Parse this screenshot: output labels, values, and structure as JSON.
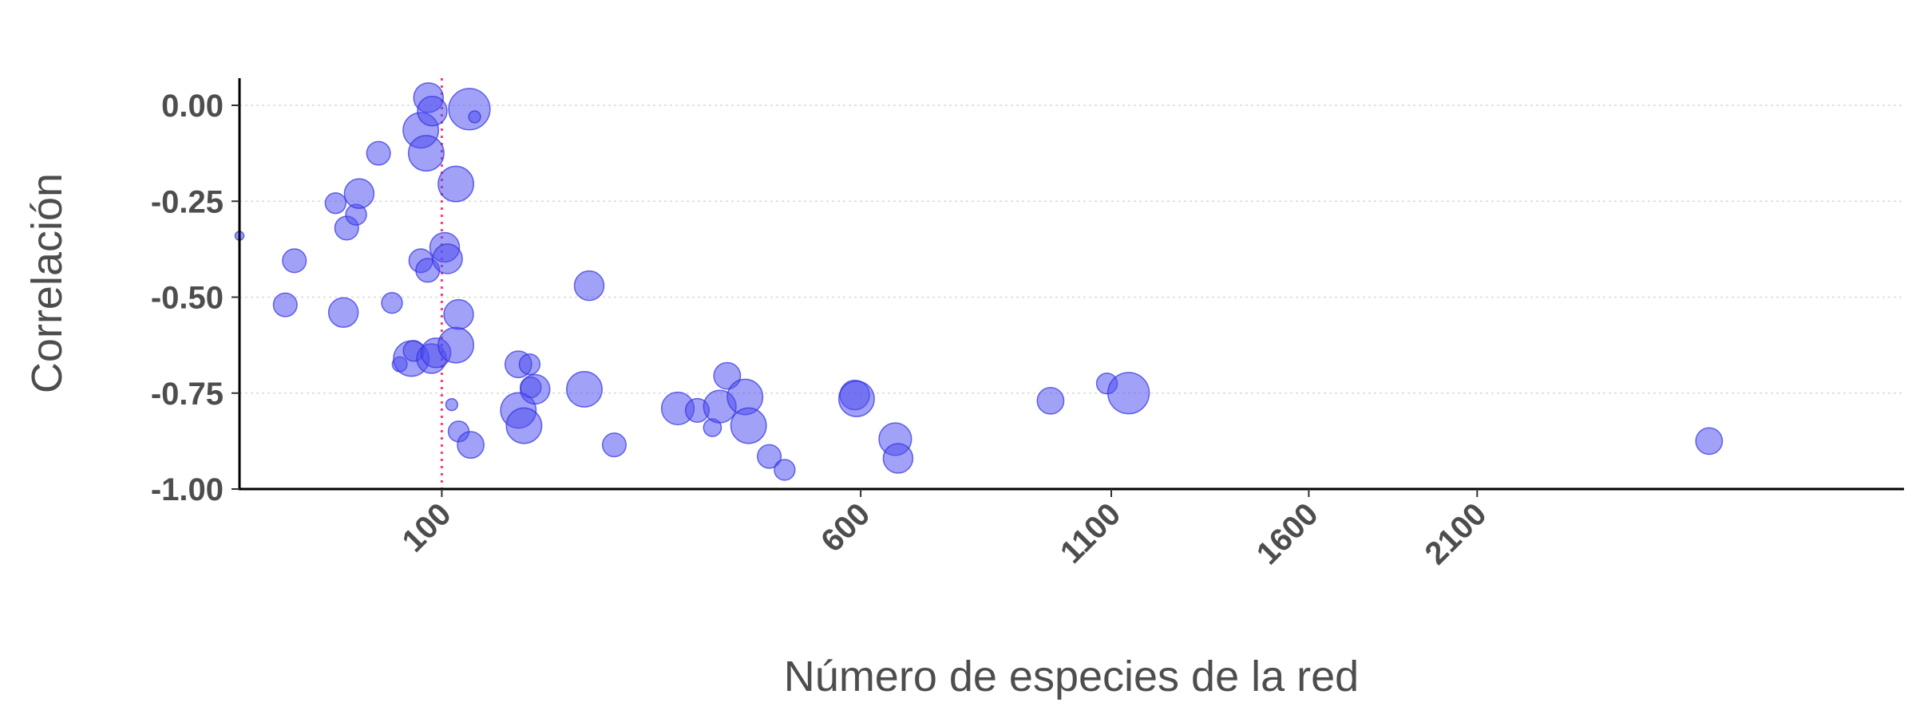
{
  "chart_data": {
    "type": "scatter",
    "xlabel": "Número de especies de la red",
    "ylabel": "Correlación",
    "x_scale": "sqrt",
    "xlim": [
      0,
      3200
    ],
    "ylim": [
      -1.0,
      0.0
    ],
    "grid": "horizontal-dotted",
    "x_ticks": [
      100,
      600,
      1100,
      1600,
      2100
    ],
    "y_ticks": [
      0.0,
      -0.25,
      -0.5,
      -0.75,
      -1.0
    ],
    "y_tick_labels": [
      "0.00",
      "-0.25",
      "-0.50",
      "-0.75",
      "-1.00"
    ],
    "reference_line": {
      "axis": "x",
      "value": 100,
      "color": "#ff3b7f",
      "style": "dotted"
    },
    "point_color": "#4a4af0",
    "points": [
      {
        "x": 9,
        "y": -0.34,
        "size": 1.5
      },
      {
        "x": 21,
        "y": -0.52,
        "size": 4
      },
      {
        "x": 24,
        "y": -0.405,
        "size": 4
      },
      {
        "x": 40,
        "y": -0.255,
        "size": 3.5
      },
      {
        "x": 43.5,
        "y": -0.54,
        "size": 5
      },
      {
        "x": 45,
        "y": -0.32,
        "size": 4
      },
      {
        "x": 49.5,
        "y": -0.285,
        "size": 3.5
      },
      {
        "x": 51,
        "y": -0.23,
        "size": 5
      },
      {
        "x": 61,
        "y": -0.125,
        "size": 4
      },
      {
        "x": 68.5,
        "y": -0.515,
        "size": 3.5
      },
      {
        "x": 73,
        "y": -0.675,
        "size": 2.5
      },
      {
        "x": 80,
        "y": -0.66,
        "size": 6
      },
      {
        "x": 81.5,
        "y": -0.64,
        "size": 3.5
      },
      {
        "x": 86,
        "y": -0.405,
        "size": 4
      },
      {
        "x": 86,
        "y": -0.065,
        "size": 6
      },
      {
        "x": 89.5,
        "y": -0.125,
        "size": 6
      },
      {
        "x": 90.5,
        "y": -0.43,
        "size": 4
      },
      {
        "x": 91,
        "y": 0.02,
        "size": 5
      },
      {
        "x": 93,
        "y": -0.66,
        "size": 5
      },
      {
        "x": 93.5,
        "y": -0.015,
        "size": 5
      },
      {
        "x": 96,
        "y": -0.645,
        "size": 5
      },
      {
        "x": 102,
        "y": -0.37,
        "size": 5
      },
      {
        "x": 104,
        "y": -0.4,
        "size": 5
      },
      {
        "x": 107,
        "y": -0.78,
        "size": 2
      },
      {
        "x": 110,
        "y": -0.205,
        "size": 6
      },
      {
        "x": 110,
        "y": -0.625,
        "size": 6
      },
      {
        "x": 112,
        "y": -0.545,
        "size": 5
      },
      {
        "x": 112,
        "y": -0.85,
        "size": 3.5
      },
      {
        "x": 120,
        "y": -0.01,
        "size": 7
      },
      {
        "x": 121,
        "y": -0.885,
        "size": 4.5
      },
      {
        "x": 124,
        "y": -0.03,
        "size": 2
      },
      {
        "x": 160,
        "y": -0.675,
        "size": 4.5
      },
      {
        "x": 160,
        "y": -0.795,
        "size": 6
      },
      {
        "x": 165,
        "y": -0.835,
        "size": 6
      },
      {
        "x": 170,
        "y": -0.675,
        "size": 3.5
      },
      {
        "x": 171,
        "y": -0.735,
        "size": 3.5
      },
      {
        "x": 175,
        "y": -0.74,
        "size": 5
      },
      {
        "x": 223,
        "y": -0.74,
        "size": 6
      },
      {
        "x": 228,
        "y": -0.47,
        "size": 5
      },
      {
        "x": 255,
        "y": -0.885,
        "size": 4
      },
      {
        "x": 330,
        "y": -0.79,
        "size": 5.5
      },
      {
        "x": 355,
        "y": -0.795,
        "size": 4
      },
      {
        "x": 375,
        "y": -0.84,
        "size": 3
      },
      {
        "x": 385,
        "y": -0.785,
        "size": 5.5
      },
      {
        "x": 395,
        "y": -0.705,
        "size": 4.5
      },
      {
        "x": 420,
        "y": -0.76,
        "size": 6
      },
      {
        "x": 425,
        "y": -0.835,
        "size": 6
      },
      {
        "x": 455,
        "y": -0.915,
        "size": 4
      },
      {
        "x": 478,
        "y": -0.95,
        "size": 3.5
      },
      {
        "x": 590,
        "y": -0.755,
        "size": 5
      },
      {
        "x": 593,
        "y": -0.765,
        "size": 6
      },
      {
        "x": 660,
        "y": -0.87,
        "size": 5.5
      },
      {
        "x": 665,
        "y": -0.92,
        "size": 5
      },
      {
        "x": 965,
        "y": -0.77,
        "size": 4.5
      },
      {
        "x": 1090,
        "y": -0.725,
        "size": 3.5
      },
      {
        "x": 1140,
        "y": -0.75,
        "size": 7
      },
      {
        "x": 2900,
        "y": -0.875,
        "size": 4.5
      }
    ]
  }
}
